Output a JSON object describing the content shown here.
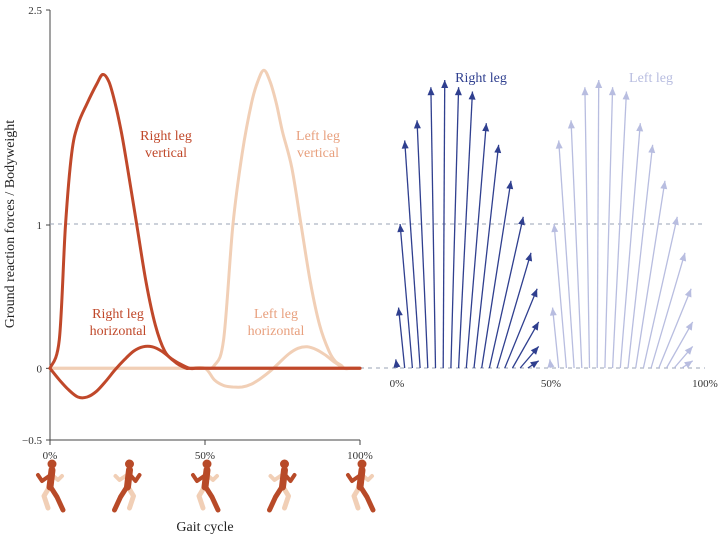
{
  "chart_data": [
    {
      "type": "line",
      "ylabel": "Ground reaction forces / Bodyweight",
      "xlabel": "Gait cycle",
      "xlim": [
        0,
        100
      ],
      "ylim": [
        -0.5,
        2.5
      ],
      "x_ticks": [
        "0%",
        "50%",
        "100%"
      ],
      "y_ticks": [
        {
          "value": 2.5,
          "label": "2.5"
        },
        {
          "value": 1,
          "label": "1"
        },
        {
          "value": 0,
          "label": "0"
        },
        {
          "value": -0.5,
          "label": "−0.5"
        }
      ],
      "reference_line": 1,
      "series": [
        {
          "name": "Right leg vertical",
          "label_lines": [
            "Right leg",
            "vertical"
          ],
          "color": "#c0482a",
          "x": [
            0,
            3,
            5,
            7,
            9,
            12,
            15,
            17,
            19,
            21,
            23,
            25,
            28,
            31,
            34,
            37,
            40,
            42,
            44,
            45,
            47,
            50,
            60,
            70,
            80,
            90,
            100
          ],
          "y": [
            0,
            0.2,
            1.0,
            1.5,
            1.7,
            1.85,
            1.98,
            2.05,
            2.0,
            1.85,
            1.65,
            1.4,
            1.0,
            0.6,
            0.3,
            0.12,
            0.05,
            0.02,
            0,
            0,
            0,
            0,
            0,
            0,
            0,
            0,
            0
          ]
        },
        {
          "name": "Right leg horizontal",
          "label_lines": [
            "Right leg",
            "horizontal"
          ],
          "color": "#c0482a",
          "x": [
            0,
            3,
            6,
            9,
            12,
            15,
            18,
            21,
            24,
            27,
            30,
            33,
            36,
            39,
            42,
            45,
            47,
            50,
            60,
            70,
            80,
            90,
            100
          ],
          "y": [
            0,
            -0.08,
            -0.15,
            -0.2,
            -0.2,
            -0.16,
            -0.09,
            -0.01,
            0.06,
            0.12,
            0.15,
            0.15,
            0.12,
            0.07,
            0.03,
            0.0,
            0,
            0,
            0,
            0,
            0,
            0,
            0
          ]
        },
        {
          "name": "Left leg vertical",
          "label_lines": [
            "Left leg",
            "vertical"
          ],
          "color": "#f1cfb6",
          "label_color": "#e8a07e",
          "x": [
            0,
            10,
            20,
            30,
            40,
            45,
            50,
            53,
            56,
            59,
            62,
            65,
            67,
            69,
            71,
            73,
            75,
            78,
            81,
            84,
            87,
            90,
            92,
            94,
            95,
            97,
            100
          ],
          "y": [
            0,
            0,
            0,
            0,
            0,
            0,
            0,
            0.02,
            0.2,
            1.0,
            1.5,
            1.85,
            2.0,
            2.08,
            2.0,
            1.85,
            1.65,
            1.4,
            1.0,
            0.6,
            0.3,
            0.12,
            0.05,
            0.02,
            0,
            0,
            0
          ]
        },
        {
          "name": "Left leg horizontal",
          "label_lines": [
            "Left leg",
            "horizontal"
          ],
          "color": "#f1cfb6",
          "label_color": "#e8a07e",
          "x": [
            0,
            10,
            20,
            30,
            40,
            45,
            50,
            53,
            56,
            59,
            62,
            65,
            68,
            71,
            74,
            77,
            80,
            83,
            86,
            89,
            92,
            95,
            97,
            100
          ],
          "y": [
            0,
            0,
            0,
            0,
            0,
            0,
            0,
            -0.08,
            -0.12,
            -0.13,
            -0.13,
            -0.11,
            -0.07,
            -0.02,
            0.04,
            0.1,
            0.14,
            0.15,
            0.13,
            0.09,
            0.04,
            0,
            0,
            0
          ]
        }
      ]
    },
    {
      "type": "vector",
      "x_ticks": [
        "0%",
        "50%",
        "100%"
      ],
      "series": [
        {
          "name": "Right leg",
          "color": "#2f3f8f",
          "vectors": [
            {
              "x": 0,
              "dx": -0.4,
              "dy": 0.06
            },
            {
              "x": 2.5,
              "dx": -2,
              "dy": 0.42
            },
            {
              "x": 5,
              "dx": -4,
              "dy": 1.0
            },
            {
              "x": 7.5,
              "dx": -5,
              "dy": 1.58
            },
            {
              "x": 10,
              "dx": -3.5,
              "dy": 1.72
            },
            {
              "x": 12.5,
              "dx": -1.5,
              "dy": 1.95
            },
            {
              "x": 15,
              "dx": 0.5,
              "dy": 2.0
            },
            {
              "x": 17.5,
              "dx": 2.5,
              "dy": 1.95
            },
            {
              "x": 20,
              "dx": 4.5,
              "dy": 1.92
            },
            {
              "x": 22.5,
              "dx": 6.5,
              "dy": 1.7
            },
            {
              "x": 25,
              "dx": 8,
              "dy": 1.55
            },
            {
              "x": 27.5,
              "dx": 9.5,
              "dy": 1.3
            },
            {
              "x": 30,
              "dx": 11.0,
              "dy": 1.05
            },
            {
              "x": 32.5,
              "dx": 11.0,
              "dy": 0.8
            },
            {
              "x": 35,
              "dx": 10.5,
              "dy": 0.55
            },
            {
              "x": 37.5,
              "dx": 8.5,
              "dy": 0.32
            },
            {
              "x": 40,
              "dx": 6,
              "dy": 0.15
            },
            {
              "x": 42.5,
              "dx": 3.5,
              "dy": 0.05
            }
          ]
        },
        {
          "name": "Left leg",
          "color": "#b8bde0",
          "vectors": [
            {
              "x": 50,
              "dx": -0.4,
              "dy": 0.06
            },
            {
              "x": 52.5,
              "dx": -2,
              "dy": 0.42
            },
            {
              "x": 55,
              "dx": -4,
              "dy": 1.0
            },
            {
              "x": 57.5,
              "dx": -5,
              "dy": 1.58
            },
            {
              "x": 60,
              "dx": -3.5,
              "dy": 1.72
            },
            {
              "x": 62.5,
              "dx": -1.5,
              "dy": 1.95
            },
            {
              "x": 65,
              "dx": 0.5,
              "dy": 2.0
            },
            {
              "x": 67.5,
              "dx": 2.5,
              "dy": 1.95
            },
            {
              "x": 70,
              "dx": 4.5,
              "dy": 1.92
            },
            {
              "x": 72.5,
              "dx": 6.5,
              "dy": 1.7
            },
            {
              "x": 75,
              "dx": 8,
              "dy": 1.55
            },
            {
              "x": 77.5,
              "dx": 9.5,
              "dy": 1.3
            },
            {
              "x": 80,
              "dx": 11.0,
              "dy": 1.05
            },
            {
              "x": 82.5,
              "dx": 11.0,
              "dy": 0.8
            },
            {
              "x": 85,
              "dx": 10.5,
              "dy": 0.55
            },
            {
              "x": 87.5,
              "dx": 8.5,
              "dy": 0.32
            },
            {
              "x": 90,
              "dx": 6,
              "dy": 0.15
            },
            {
              "x": 92.5,
              "dx": 3.5,
              "dy": 0.05
            }
          ]
        }
      ]
    }
  ],
  "runner_icons": {
    "count": 5,
    "front_color": "#b84a28",
    "back_color": "#f1cfb6"
  }
}
